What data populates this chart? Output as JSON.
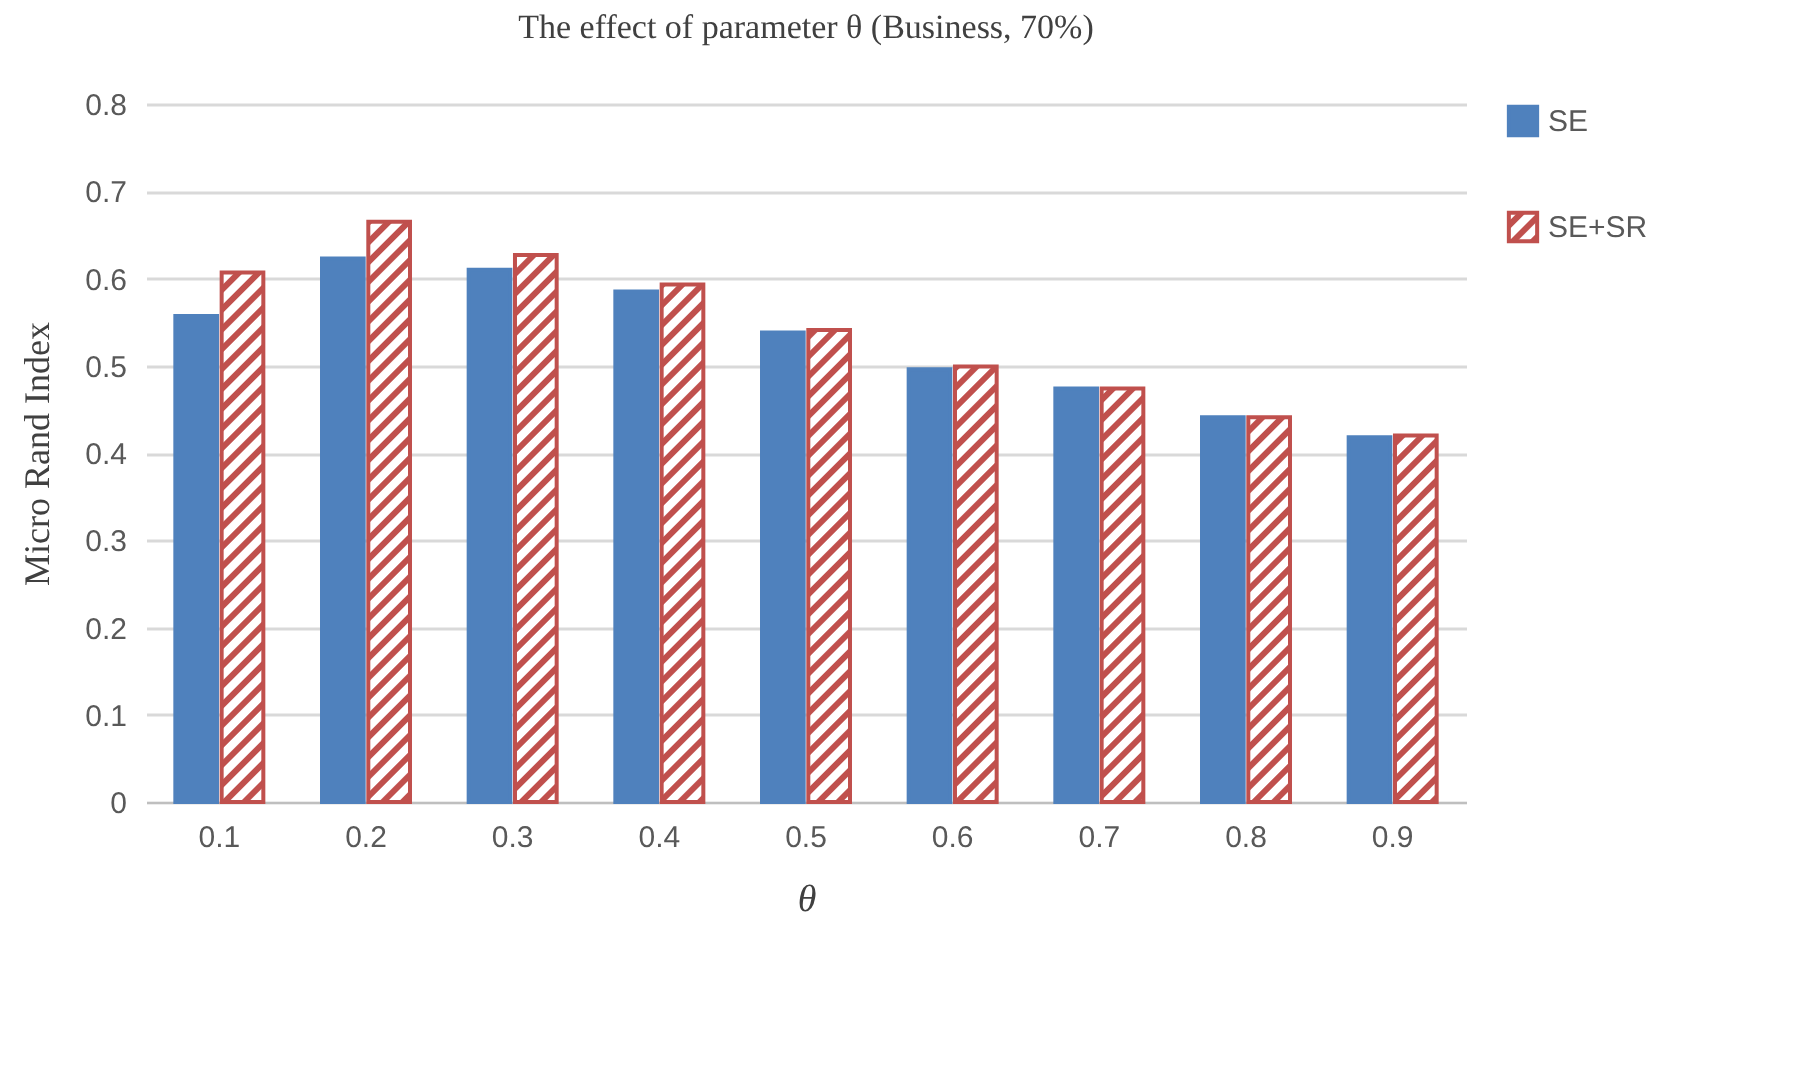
{
  "chart_data": {
    "type": "bar",
    "title": "The effect of parameter θ (Business, 70%)",
    "xlabel": "θ",
    "ylabel": "Micro Rand Index",
    "categories": [
      "0.1",
      "0.2",
      "0.3",
      "0.4",
      "0.5",
      "0.6",
      "0.7",
      "0.8",
      "0.9"
    ],
    "series": [
      {
        "name": "SE",
        "color": "#4f81bd",
        "values": [
          0.557,
          0.623,
          0.61,
          0.585,
          0.538,
          0.496,
          0.474,
          0.441,
          0.418
        ]
      },
      {
        "name": "SE+SR",
        "color": "#c0504d",
        "values": [
          0.607,
          0.665,
          0.627,
          0.593,
          0.541,
          0.499,
          0.474,
          0.441,
          0.42
        ]
      }
    ],
    "ylim": [
      0,
      0.8
    ],
    "yticks": [
      0,
      0.1,
      0.2,
      0.3,
      0.4,
      0.5,
      0.6,
      0.7,
      0.8
    ],
    "grid": "y",
    "legend": "right"
  }
}
